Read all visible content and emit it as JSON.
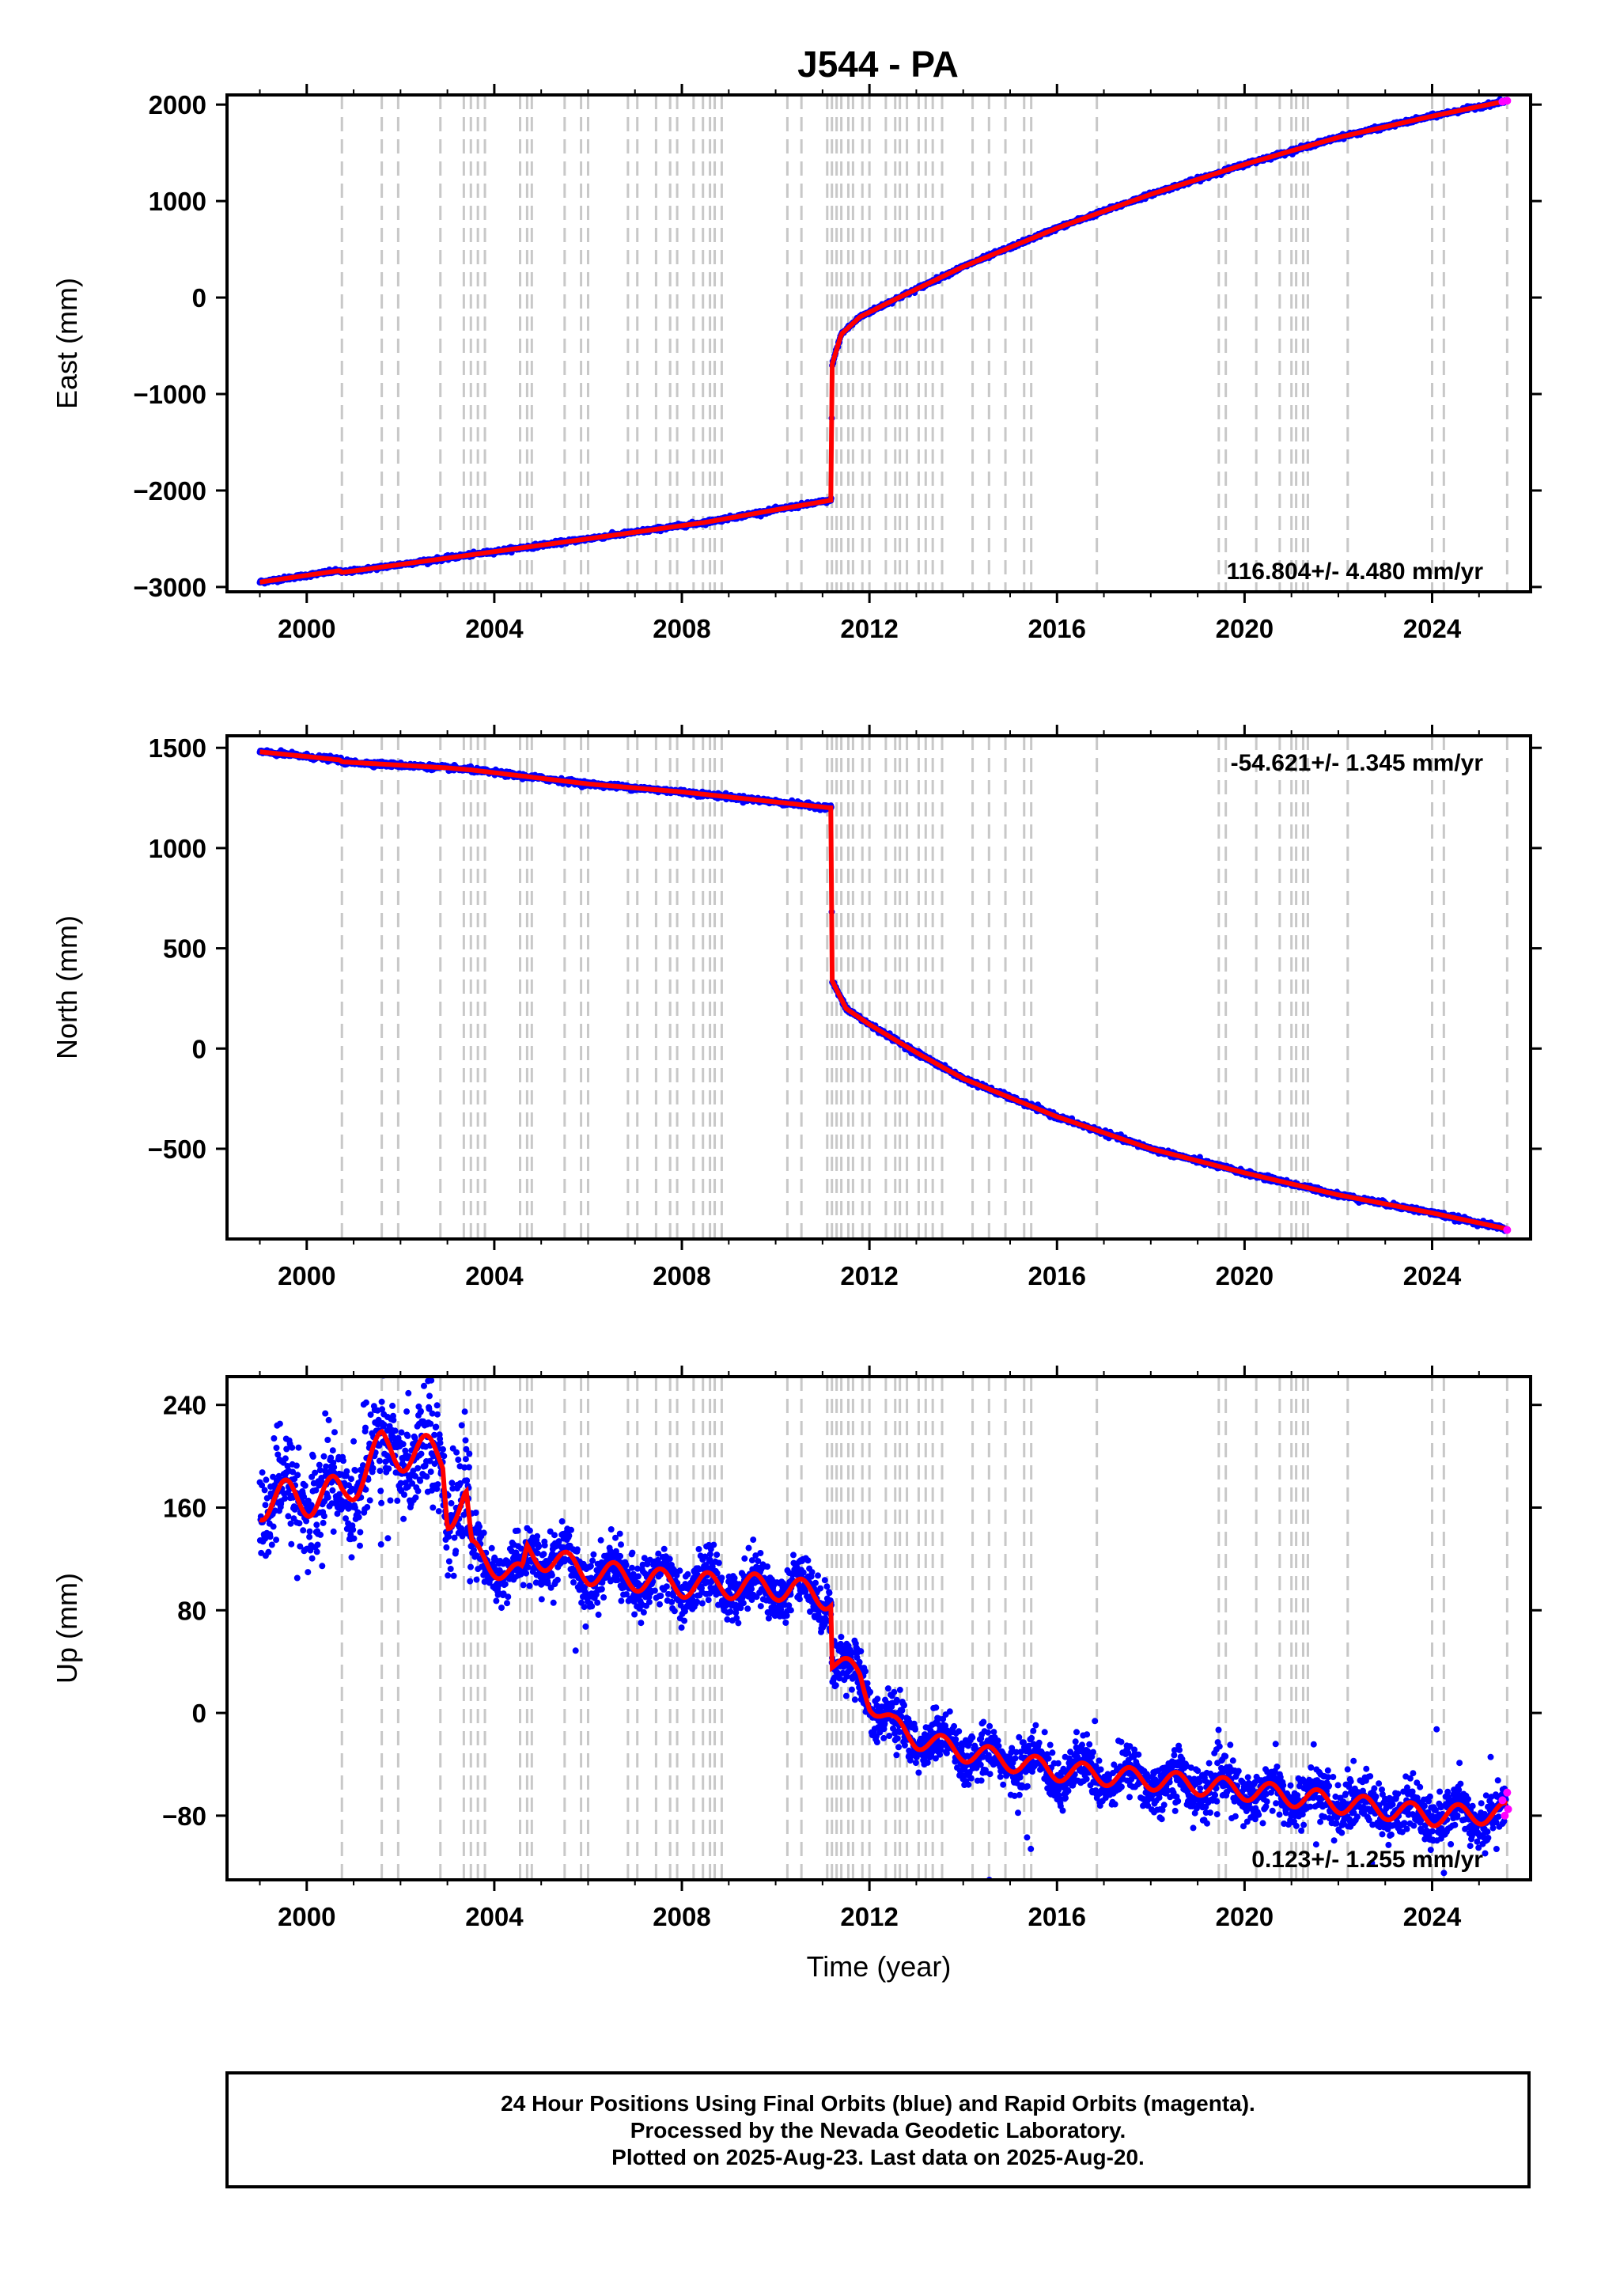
{
  "title": "J544 - PA",
  "caption": {
    "lines": [
      "24 Hour Positions Using Final Orbits (blue) and Rapid Orbits (magenta).",
      "Processed by the Nevada Geodetic Laboratory.",
      "Plotted on 2025-Aug-23. Last data on 2025-Aug-20."
    ]
  },
  "colors": {
    "final_orbits": "#0000ff",
    "rapid_orbits": "#ff00ff",
    "model": "#ff0000",
    "steps": "#c8c8c8"
  },
  "chart_data": [
    {
      "type": "scatter",
      "ylabel": "East (mm)",
      "xlabel": "",
      "xlim": [
        1998.3,
        2026.1
      ],
      "ylim": [
        -3050,
        2100
      ],
      "xticks": [
        2000,
        2004,
        2008,
        2012,
        2016,
        2020,
        2024
      ],
      "yticks": [
        -3000,
        -2000,
        -1000,
        0,
        1000,
        2000
      ],
      "ytick_labels": [
        "−3000",
        "−2000",
        "−1000",
        "0",
        "1000",
        "2000"
      ],
      "rate_label": "116.804+/- 4.480 mm/yr",
      "rate_position": "bottom-right",
      "model": [
        [
          1999.0,
          -2950
        ],
        [
          2000.7,
          -2830
        ],
        [
          2000.75,
          -2850
        ],
        [
          2003.0,
          -2700
        ],
        [
          2006.0,
          -2500
        ],
        [
          2008.5,
          -2330
        ],
        [
          2010.0,
          -2200
        ],
        [
          2011.19,
          -2100
        ],
        [
          2011.2,
          -700
        ],
        [
          2011.4,
          -380
        ],
        [
          2011.8,
          -200
        ],
        [
          2012.5,
          -30
        ],
        [
          2014.0,
          320
        ],
        [
          2016.0,
          720
        ],
        [
          2018.0,
          1070
        ],
        [
          2020.0,
          1380
        ],
        [
          2022.0,
          1660
        ],
        [
          2024.0,
          1880
        ],
        [
          2025.6,
          2040
        ]
      ],
      "rapid_points": [
        [
          2025.5,
          2030
        ],
        [
          2025.6,
          2040
        ]
      ]
    },
    {
      "type": "scatter",
      "ylabel": "North (mm)",
      "xlabel": "",
      "xlim": [
        1998.3,
        2026.1
      ],
      "ylim": [
        -950,
        1560
      ],
      "xticks": [
        2000,
        2004,
        2008,
        2012,
        2016,
        2020,
        2024
      ],
      "yticks": [
        -500,
        0,
        500,
        1000,
        1500
      ],
      "ytick_labels": [
        "−500",
        "0",
        "500",
        "1000",
        "1500"
      ],
      "rate_label": "-54.621+/- 1.345 mm/yr",
      "rate_position": "top-right",
      "model": [
        [
          1999.0,
          1480
        ],
        [
          2000.7,
          1440
        ],
        [
          2000.75,
          1430
        ],
        [
          2003.0,
          1400
        ],
        [
          2003.5,
          1390
        ],
        [
          2006.0,
          1320
        ],
        [
          2008.0,
          1280
        ],
        [
          2010.0,
          1230
        ],
        [
          2011.19,
          1200
        ],
        [
          2011.2,
          340
        ],
        [
          2011.5,
          200
        ],
        [
          2012.0,
          120
        ],
        [
          2013.0,
          -20
        ],
        [
          2014.0,
          -150
        ],
        [
          2016.0,
          -340
        ],
        [
          2018.0,
          -500
        ],
        [
          2020.0,
          -620
        ],
        [
          2022.0,
          -730
        ],
        [
          2024.0,
          -820
        ],
        [
          2025.6,
          -900
        ]
      ],
      "rapid_points": [
        [
          2025.6,
          -905
        ]
      ]
    },
    {
      "type": "scatter",
      "ylabel": "Up (mm)",
      "xlabel": "Time (year)",
      "xlim": [
        1998.3,
        2026.1
      ],
      "ylim": [
        -130,
        262
      ],
      "xticks": [
        2000,
        2004,
        2008,
        2012,
        2016,
        2020,
        2024
      ],
      "yticks": [
        -80,
        0,
        80,
        160,
        240
      ],
      "ytick_labels": [
        "−80",
        "0",
        "80",
        "160",
        "240"
      ],
      "rate_label": "0.123+/- 1.255 mm/yr",
      "rate_position": "bottom-right",
      "model": [
        [
          1999.0,
          165
        ],
        [
          2000.7,
          170
        ],
        [
          2000.75,
          170
        ],
        [
          2001.6,
          205
        ],
        [
          2002.9,
          200
        ],
        [
          2003.0,
          158
        ],
        [
          2003.4,
          165
        ],
        [
          2003.5,
          125
        ],
        [
          2004.6,
          105
        ],
        [
          2004.7,
          125
        ],
        [
          2006.0,
          110
        ],
        [
          2008.0,
          100
        ],
        [
          2010.0,
          98
        ],
        [
          2011.19,
          90
        ],
        [
          2011.2,
          40
        ],
        [
          2011.8,
          30
        ],
        [
          2012.0,
          10
        ],
        [
          2012.5,
          -10
        ],
        [
          2013.0,
          -20
        ],
        [
          2014.0,
          -30
        ],
        [
          2016.0,
          -45
        ],
        [
          2018.0,
          -52
        ],
        [
          2020.0,
          -60
        ],
        [
          2022.0,
          -70
        ],
        [
          2024.0,
          -80
        ],
        [
          2025.6,
          -78
        ]
      ],
      "rapid_points": [
        [
          2025.5,
          -68
        ],
        [
          2025.55,
          -80
        ],
        [
          2025.6,
          -62
        ],
        [
          2025.62,
          -75
        ]
      ]
    }
  ],
  "step_epochs": [
    2000.75,
    2001.6,
    2001.95,
    2002.85,
    2003.35,
    2003.5,
    2003.65,
    2003.8,
    2004.55,
    2004.7,
    2004.8,
    2005.5,
    2005.85,
    2006.0,
    2006.85,
    2007.05,
    2007.45,
    2007.75,
    2007.9,
    2008.25,
    2008.45,
    2008.6,
    2008.7,
    2008.85,
    2010.25,
    2010.55,
    2011.1,
    2011.2,
    2011.3,
    2011.4,
    2011.55,
    2011.65,
    2011.85,
    2012.0,
    2012.35,
    2012.55,
    2012.65,
    2012.8,
    2013.05,
    2013.2,
    2013.35,
    2013.55,
    2014.2,
    2014.55,
    2014.9,
    2015.3,
    2015.45,
    2016.85,
    2019.45,
    2019.6,
    2020.25,
    2020.75,
    2021.0,
    2021.1,
    2021.25,
    2021.35,
    2022.2,
    2024.0,
    2024.25,
    2025.6
  ]
}
